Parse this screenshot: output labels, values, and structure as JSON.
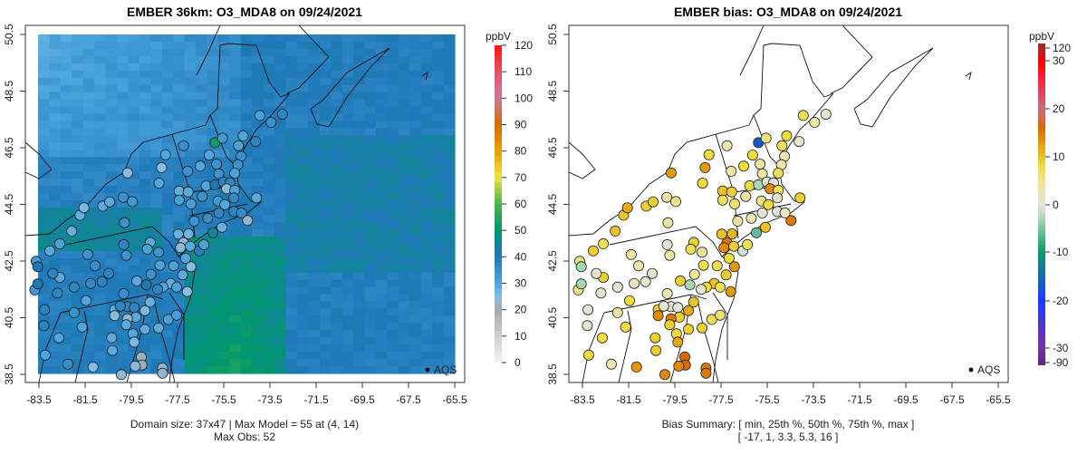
{
  "chart_data": [
    {
      "type": "map",
      "title": "EMBER 36km: O3_MDA8 on 09/24/2021",
      "variable": "obs",
      "xticks": [
        "-83.5",
        "-81.5",
        "-79.5",
        "-77.5",
        "-75.5",
        "-73.5",
        "-71.5",
        "-69.5",
        "-67.5",
        "-65.5"
      ],
      "yticks": [
        "38.5",
        "40.5",
        "42.5",
        "44.5",
        "46.5",
        "48.5",
        "50.5"
      ],
      "xlim": [
        -83.5,
        -65.5
      ],
      "ylim": [
        38.5,
        50.5
      ],
      "colorbar": {
        "unit": "ppbV",
        "ticks": [
          "0",
          "10",
          "20",
          "30",
          "40",
          "50",
          "60",
          "70",
          "80",
          "90",
          "100",
          "110",
          "120"
        ]
      },
      "legend": "AQS",
      "caption": [
        "Domain size: 37x47 | Max Model = 55 at (4, 14)",
        "Max Obs: 52"
      ],
      "model_grid": {
        "cols": 37,
        "rows": 47,
        "max": 55
      }
    },
    {
      "type": "map",
      "title": "EMBER bias: O3_MDA8 on 09/24/2021",
      "variable": "bias",
      "xticks": [
        "-83.5",
        "-81.5",
        "-79.5",
        "-77.5",
        "-75.5",
        "-73.5",
        "-71.5",
        "-69.5",
        "-67.5",
        "-65.5"
      ],
      "yticks": [
        "38.5",
        "40.5",
        "42.5",
        "44.5",
        "46.5",
        "48.5",
        "50.5"
      ],
      "xlim": [
        -83.5,
        -65.5
      ],
      "ylim": [
        38.5,
        50.5
      ],
      "colorbar": {
        "unit": "ppbV",
        "ticks": [
          "120",
          "30",
          "20",
          "10",
          "0",
          "-10",
          "-20",
          "-30",
          "-90"
        ]
      },
      "legend": "AQS",
      "caption": [
        "Bias Summary: [ min, 25th %, 50th %, 75th %, max ]",
        "[ -17,   1,   3.3,   5.3,   16 ]"
      ],
      "bias_summary": [
        -17,
        1,
        3.3,
        5.3,
        16
      ]
    }
  ],
  "stations": {
    "fields": [
      "lon",
      "lat",
      "obs",
      "bias"
    ],
    "rows": [
      [
        -73.94,
        47.64,
        31,
        7
      ],
      [
        -72.96,
        47.68,
        37,
        1
      ],
      [
        -73.45,
        47.4,
        34,
        4
      ],
      [
        -75.88,
        46.68,
        52,
        -17
      ],
      [
        -75.55,
        46.84,
        33,
        5
      ],
      [
        -74.66,
        46.92,
        30,
        8
      ],
      [
        -74.12,
        46.72,
        37,
        1
      ],
      [
        -74.86,
        46.57,
        31,
        7
      ],
      [
        -77.24,
        46.57,
        35,
        3
      ],
      [
        -78.02,
        46.25,
        30,
        8
      ],
      [
        -76.13,
        46.24,
        30,
        8
      ],
      [
        -74.75,
        46.2,
        35,
        3
      ],
      [
        -78.19,
        45.8,
        25,
        13
      ],
      [
        -76.52,
        45.85,
        30,
        8
      ],
      [
        -75.81,
        45.92,
        34,
        4
      ],
      [
        -74.89,
        45.9,
        34,
        4
      ],
      [
        -79.66,
        45.61,
        25,
        13
      ],
      [
        -77.06,
        45.67,
        34,
        4
      ],
      [
        -75.71,
        45.58,
        34,
        4
      ],
      [
        -75.02,
        45.6,
        31,
        7
      ],
      [
        -78.3,
        45.25,
        30,
        8
      ],
      [
        -76.26,
        45.16,
        30,
        8
      ],
      [
        -75.88,
        45.19,
        41,
        -3
      ],
      [
        -75.51,
        45.29,
        37,
        1
      ],
      [
        -75.23,
        45.26,
        37,
        1
      ],
      [
        -75.38,
        45.05,
        24,
        14
      ],
      [
        -75.02,
        45.0,
        31,
        7
      ],
      [
        -77.43,
        44.97,
        28,
        10
      ],
      [
        -77.04,
        44.94,
        29,
        9
      ],
      [
        -77.43,
        44.65,
        31,
        7
      ],
      [
        -76.91,
        44.52,
        32,
        6
      ],
      [
        -76.43,
        44.78,
        34,
        4
      ],
      [
        -75.75,
        44.62,
        33,
        5
      ],
      [
        -75.45,
        44.49,
        30,
        8
      ],
      [
        -75.06,
        44.73,
        36,
        2
      ],
      [
        -74.08,
        44.73,
        29,
        9
      ],
      [
        -74.47,
        43.93,
        23,
        15
      ],
      [
        -75.06,
        44.25,
        37,
        1
      ],
      [
        -74.73,
        44.2,
        36,
        2
      ],
      [
        -75.71,
        44.2,
        37,
        1
      ],
      [
        -76.19,
        44.01,
        35,
        3
      ],
      [
        -76.78,
        43.91,
        34,
        4
      ],
      [
        -75.58,
        43.69,
        28,
        10
      ],
      [
        -75.97,
        43.5,
        44,
        -6
      ],
      [
        -77.47,
        43.45,
        28,
        10
      ],
      [
        -77.02,
        43.46,
        27,
        11
      ],
      [
        -77.24,
        43.15,
        23,
        15
      ],
      [
        -77.37,
        42.97,
        24,
        14
      ],
      [
        -76.56,
        42.86,
        39,
        -1
      ],
      [
        -76.36,
        43.08,
        31,
        7
      ],
      [
        -76.95,
        43.02,
        29,
        9
      ],
      [
        -77.15,
        42.6,
        30,
        8
      ],
      [
        -76.92,
        42.3,
        25,
        13
      ],
      [
        -77.67,
        42.33,
        31,
        7
      ],
      [
        -77.28,
        42.01,
        29,
        9
      ],
      [
        -78.26,
        42.35,
        31,
        7
      ],
      [
        -78.65,
        42.03,
        34,
        4
      ],
      [
        -77.8,
        41.71,
        28,
        10
      ],
      [
        -77.54,
        41.58,
        31,
        7
      ],
      [
        -77.08,
        41.42,
        25,
        13
      ],
      [
        -78.13,
        41.58,
        30,
        8
      ],
      [
        -78.36,
        41.5,
        37,
        1
      ],
      [
        -79.26,
        41.8,
        29,
        9
      ],
      [
        -78.85,
        41.66,
        41,
        -3
      ],
      [
        -79.83,
        41.35,
        35,
        3
      ],
      [
        -79.67,
        40.89,
        37,
        1
      ],
      [
        -79.37,
        40.86,
        37,
        1
      ],
      [
        -78.69,
        41.05,
        28,
        10
      ],
      [
        -78.91,
        40.75,
        26,
        12
      ],
      [
        -80.22,
        40.78,
        29,
        9
      ],
      [
        -80.22,
        40.57,
        24,
        14
      ],
      [
        -79.98,
        40.91,
        37,
        1
      ],
      [
        -79.3,
        40.52,
        29,
        9
      ],
      [
        -79.67,
        40.46,
        23,
        15
      ],
      [
        -79.72,
        40.25,
        29,
        9
      ],
      [
        -78.91,
        40.09,
        29,
        9
      ],
      [
        -79.43,
        39.93,
        30,
        8
      ],
      [
        -78.32,
        40.14,
        29,
        9
      ],
      [
        -77.9,
        40.44,
        31,
        7
      ],
      [
        -77.54,
        40.59,
        32,
        6
      ],
      [
        -79.37,
        39.64,
        26,
        12
      ],
      [
        -80.35,
        39.79,
        29,
        9
      ],
      [
        -80.32,
        39.34,
        29,
        9
      ],
      [
        -79.07,
        39.11,
        22,
        16
      ],
      [
        -79.04,
        38.83,
        22,
        16
      ],
      [
        -79.33,
        38.79,
        24,
        14
      ],
      [
        -78.15,
        38.72,
        23,
        15
      ],
      [
        -78.15,
        38.54,
        23,
        15
      ],
      [
        -79.93,
        38.49,
        24,
        14
      ],
      [
        -81.16,
        38.76,
        25,
        13
      ],
      [
        -82.25,
        38.86,
        35,
        3
      ],
      [
        -83.23,
        39.18,
        30,
        8
      ],
      [
        -82.64,
        39.79,
        30,
        8
      ],
      [
        -81.63,
        40.17,
        30,
        8
      ],
      [
        -83.29,
        40.22,
        37,
        1
      ],
      [
        -83.26,
        40.78,
        37,
        1
      ],
      [
        -81.98,
        40.68,
        34,
        4
      ],
      [
        -81.46,
        41.1,
        30,
        8
      ],
      [
        -82.7,
        41.37,
        37,
        1
      ],
      [
        -81.98,
        41.58,
        37,
        1
      ],
      [
        -81.26,
        41.71,
        36,
        2
      ],
      [
        -80.77,
        41.77,
        37,
        1
      ],
      [
        -80.48,
        42.06,
        37,
        1
      ],
      [
        -81.07,
        42.33,
        35,
        3
      ],
      [
        -81.39,
        42.73,
        34,
        4
      ],
      [
        -82.6,
        41.92,
        29,
        9
      ],
      [
        -82.9,
        42.06,
        37,
        1
      ],
      [
        -83.62,
        42.49,
        33,
        5
      ],
      [
        -83.55,
        42.3,
        41,
        -3
      ],
      [
        -83.68,
        41.48,
        33,
        5
      ],
      [
        -83.55,
        41.69,
        41,
        -3
      ],
      [
        -83.03,
        42.86,
        29,
        9
      ],
      [
        -82.6,
        43.11,
        31,
        7
      ],
      [
        -82.08,
        43.56,
        28,
        10
      ],
      [
        -81.72,
        44.12,
        28,
        10
      ],
      [
        -81.55,
        44.38,
        26,
        12
      ],
      [
        -80.74,
        44.44,
        29,
        9
      ],
      [
        -80.44,
        44.59,
        29,
        9
      ],
      [
        -79.85,
        44.75,
        34,
        4
      ],
      [
        -79.46,
        44.6,
        33,
        5
      ],
      [
        -79.8,
        43.85,
        34,
        4
      ],
      [
        -79.83,
        43.08,
        37,
        1
      ],
      [
        -79.72,
        42.7,
        34,
        4
      ],
      [
        -78.68,
        43.16,
        29,
        9
      ],
      [
        -78.81,
        42.92,
        31,
        7
      ],
      [
        -78.32,
        42.81,
        34,
        4
      ]
    ]
  }
}
